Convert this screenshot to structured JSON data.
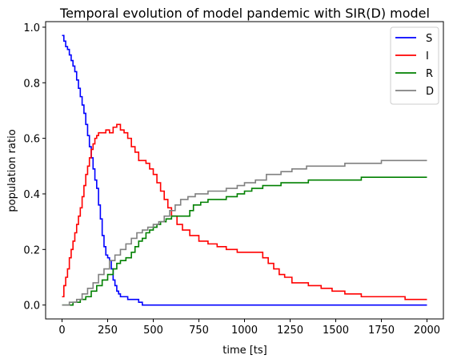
{
  "chart_data": {
    "type": "line",
    "title": "Temporal evolution of model pandemic with SIR(D) model",
    "xlabel": "time [ts]",
    "ylabel": "population ratio",
    "xlim": [
      -90,
      2090
    ],
    "ylim": [
      -0.05,
      1.02
    ],
    "xticks": [
      0,
      250,
      500,
      750,
      1000,
      1250,
      1500,
      1750,
      2000
    ],
    "yticks": [
      0.0,
      0.2,
      0.4,
      0.6,
      0.8,
      1.0
    ],
    "grid": false,
    "legend_position": "top-right",
    "series": [
      {
        "name": "S",
        "color": "#0000ff",
        "step": true,
        "points": [
          [
            0,
            0.97
          ],
          [
            10,
            0.95
          ],
          [
            20,
            0.93
          ],
          [
            30,
            0.92
          ],
          [
            40,
            0.9
          ],
          [
            50,
            0.88
          ],
          [
            60,
            0.86
          ],
          [
            70,
            0.84
          ],
          [
            80,
            0.81
          ],
          [
            90,
            0.78
          ],
          [
            100,
            0.75
          ],
          [
            110,
            0.72
          ],
          [
            120,
            0.69
          ],
          [
            130,
            0.65
          ],
          [
            140,
            0.61
          ],
          [
            150,
            0.57
          ],
          [
            160,
            0.53
          ],
          [
            170,
            0.49
          ],
          [
            180,
            0.45
          ],
          [
            190,
            0.42
          ],
          [
            200,
            0.36
          ],
          [
            210,
            0.31
          ],
          [
            220,
            0.25
          ],
          [
            230,
            0.21
          ],
          [
            240,
            0.18
          ],
          [
            250,
            0.17
          ],
          [
            260,
            0.16
          ],
          [
            270,
            0.13
          ],
          [
            280,
            0.09
          ],
          [
            290,
            0.07
          ],
          [
            300,
            0.05
          ],
          [
            310,
            0.04
          ],
          [
            320,
            0.03
          ],
          [
            340,
            0.03
          ],
          [
            360,
            0.02
          ],
          [
            390,
            0.02
          ],
          [
            420,
            0.01
          ],
          [
            440,
            0.0
          ],
          [
            2000,
            0.0
          ]
        ]
      },
      {
        "name": "I",
        "color": "#ff0000",
        "step": true,
        "points": [
          [
            0,
            0.03
          ],
          [
            10,
            0.07
          ],
          [
            20,
            0.1
          ],
          [
            30,
            0.13
          ],
          [
            40,
            0.17
          ],
          [
            50,
            0.2
          ],
          [
            60,
            0.23
          ],
          [
            70,
            0.26
          ],
          [
            80,
            0.29
          ],
          [
            90,
            0.32
          ],
          [
            100,
            0.35
          ],
          [
            110,
            0.39
          ],
          [
            120,
            0.43
          ],
          [
            130,
            0.47
          ],
          [
            140,
            0.5
          ],
          [
            150,
            0.53
          ],
          [
            160,
            0.56
          ],
          [
            170,
            0.58
          ],
          [
            180,
            0.6
          ],
          [
            190,
            0.61
          ],
          [
            200,
            0.62
          ],
          [
            220,
            0.62
          ],
          [
            240,
            0.63
          ],
          [
            260,
            0.62
          ],
          [
            280,
            0.64
          ],
          [
            300,
            0.65
          ],
          [
            320,
            0.63
          ],
          [
            340,
            0.62
          ],
          [
            360,
            0.6
          ],
          [
            380,
            0.57
          ],
          [
            400,
            0.55
          ],
          [
            420,
            0.52
          ],
          [
            440,
            0.52
          ],
          [
            460,
            0.51
          ],
          [
            480,
            0.49
          ],
          [
            500,
            0.47
          ],
          [
            520,
            0.44
          ],
          [
            540,
            0.41
          ],
          [
            560,
            0.38
          ],
          [
            580,
            0.35
          ],
          [
            600,
            0.32
          ],
          [
            630,
            0.29
          ],
          [
            660,
            0.27
          ],
          [
            700,
            0.25
          ],
          [
            750,
            0.23
          ],
          [
            800,
            0.22
          ],
          [
            850,
            0.21
          ],
          [
            900,
            0.2
          ],
          [
            960,
            0.19
          ],
          [
            1060,
            0.19
          ],
          [
            1100,
            0.17
          ],
          [
            1130,
            0.15
          ],
          [
            1160,
            0.13
          ],
          [
            1190,
            0.11
          ],
          [
            1220,
            0.1
          ],
          [
            1260,
            0.08
          ],
          [
            1350,
            0.07
          ],
          [
            1420,
            0.06
          ],
          [
            1480,
            0.05
          ],
          [
            1550,
            0.04
          ],
          [
            1640,
            0.03
          ],
          [
            1880,
            0.02
          ],
          [
            2000,
            0.02
          ]
        ]
      },
      {
        "name": "R",
        "color": "#008000",
        "step": true,
        "points": [
          [
            0,
            0.0
          ],
          [
            60,
            0.01
          ],
          [
            100,
            0.02
          ],
          [
            130,
            0.03
          ],
          [
            160,
            0.05
          ],
          [
            190,
            0.07
          ],
          [
            220,
            0.09
          ],
          [
            250,
            0.11
          ],
          [
            280,
            0.13
          ],
          [
            300,
            0.15
          ],
          [
            320,
            0.16
          ],
          [
            350,
            0.17
          ],
          [
            380,
            0.19
          ],
          [
            400,
            0.21
          ],
          [
            420,
            0.23
          ],
          [
            440,
            0.24
          ],
          [
            460,
            0.26
          ],
          [
            480,
            0.27
          ],
          [
            500,
            0.28
          ],
          [
            520,
            0.29
          ],
          [
            540,
            0.3
          ],
          [
            570,
            0.31
          ],
          [
            600,
            0.32
          ],
          [
            700,
            0.34
          ],
          [
            720,
            0.36
          ],
          [
            760,
            0.37
          ],
          [
            800,
            0.38
          ],
          [
            900,
            0.39
          ],
          [
            960,
            0.4
          ],
          [
            1000,
            0.41
          ],
          [
            1040,
            0.42
          ],
          [
            1100,
            0.43
          ],
          [
            1200,
            0.44
          ],
          [
            1260,
            0.44
          ],
          [
            1350,
            0.45
          ],
          [
            1550,
            0.45
          ],
          [
            1640,
            0.46
          ],
          [
            2000,
            0.46
          ]
        ]
      },
      {
        "name": "D",
        "color": "#808080",
        "step": true,
        "points": [
          [
            0,
            0.0
          ],
          [
            40,
            0.01
          ],
          [
            80,
            0.02
          ],
          [
            110,
            0.04
          ],
          [
            140,
            0.06
          ],
          [
            170,
            0.08
          ],
          [
            200,
            0.11
          ],
          [
            230,
            0.13
          ],
          [
            260,
            0.16
          ],
          [
            290,
            0.18
          ],
          [
            320,
            0.2
          ],
          [
            350,
            0.22
          ],
          [
            380,
            0.24
          ],
          [
            410,
            0.26
          ],
          [
            440,
            0.27
          ],
          [
            470,
            0.28
          ],
          [
            500,
            0.29
          ],
          [
            530,
            0.3
          ],
          [
            560,
            0.32
          ],
          [
            590,
            0.34
          ],
          [
            620,
            0.36
          ],
          [
            650,
            0.38
          ],
          [
            690,
            0.39
          ],
          [
            730,
            0.4
          ],
          [
            800,
            0.41
          ],
          [
            900,
            0.42
          ],
          [
            960,
            0.43
          ],
          [
            1000,
            0.44
          ],
          [
            1060,
            0.45
          ],
          [
            1120,
            0.47
          ],
          [
            1200,
            0.48
          ],
          [
            1260,
            0.49
          ],
          [
            1340,
            0.5
          ],
          [
            1550,
            0.51
          ],
          [
            1750,
            0.52
          ],
          [
            2000,
            0.52
          ]
        ]
      }
    ]
  }
}
